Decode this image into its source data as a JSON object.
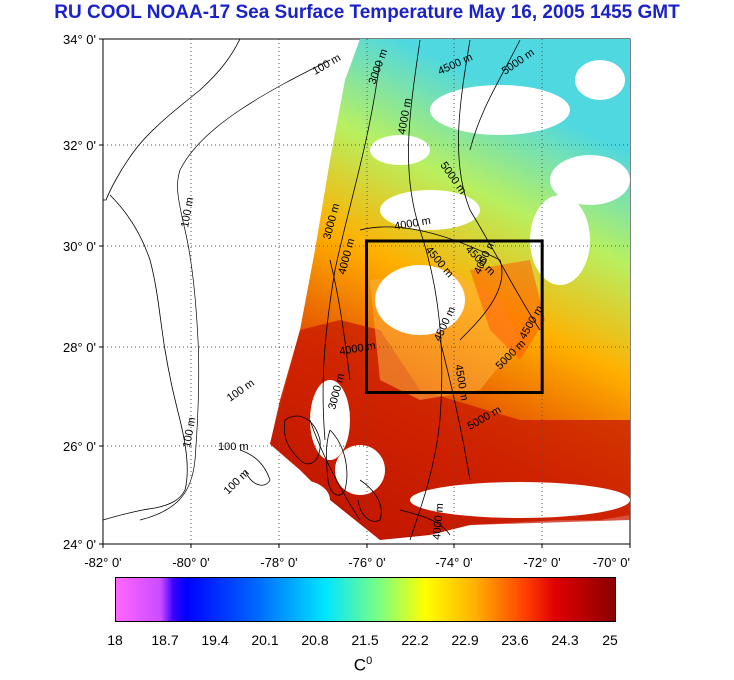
{
  "title": "RU COOL  NOAA-17 Sea Surface Temperature May 16, 2005 1455 GMT",
  "lat_ticks": [
    "34° 0'",
    "32° 0'",
    "30° 0'",
    "28° 0'",
    "26° 0'",
    "24° 0'"
  ],
  "lon_ticks": [
    "-82° 0'",
    "-80° 0'",
    "-78° 0'",
    "-76° 0'",
    "-74° 0'",
    "-72° 0'",
    "-70° 0'"
  ],
  "contour_labels": [
    "100 m",
    "3000 m",
    "4000 m",
    "4500 m",
    "5000 m",
    "100 m",
    "100 m",
    "100 m",
    "100 m",
    "3000 m",
    "4000 m",
    "4500 m",
    "4500 m",
    "4500 m",
    "5000 m",
    "4000 m",
    "4500 m",
    "4500 m",
    "5000 m",
    "5000 m",
    "4000 m",
    "3000 m",
    "4000 m",
    "100 m",
    "4000 m"
  ],
  "colorbar": {
    "ticks": [
      "18",
      "18.7",
      "19.4",
      "20.1",
      "20.8",
      "21.5",
      "22.2",
      "22.9",
      "23.6",
      "24.3",
      "25"
    ],
    "units": "C",
    "units_sup": "0"
  },
  "study_box": {
    "lon_min": -76,
    "lon_max": -72,
    "lat_min": 27,
    "lat_max": 30
  },
  "colors": {
    "title": "#1a22c8",
    "land": "#ffffff",
    "warm": "#c21a00",
    "cool": "#5fd9c8"
  }
}
